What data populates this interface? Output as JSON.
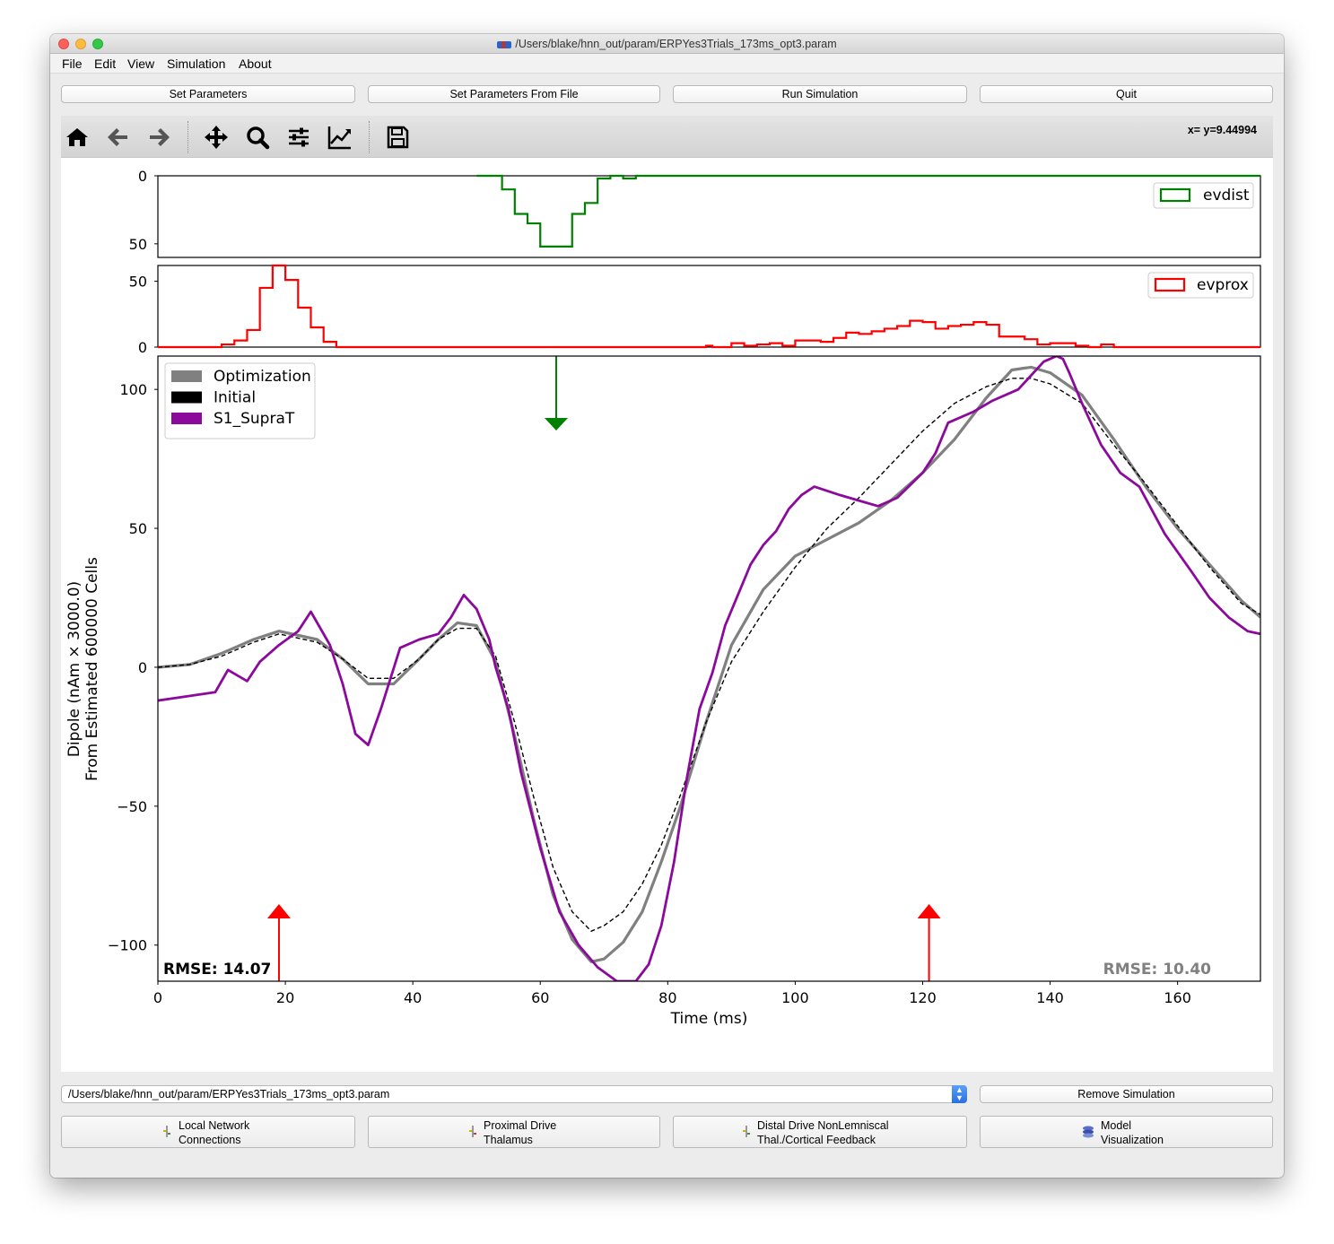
{
  "window": {
    "title": "/Users/blake/hnn_out/param/ERPYes3Trials_173ms_opt3.param"
  },
  "menu": [
    "File",
    "Edit",
    "View",
    "Simulation",
    "About"
  ],
  "top_buttons": {
    "set_parameters": "Set Parameters",
    "set_parameters_from_file": "Set Parameters From File",
    "run_simulation": "Run Simulation",
    "quit": "Quit"
  },
  "toolbar": {
    "icons": [
      "home-icon",
      "back-arrow-icon",
      "forward-arrow-icon",
      "pan-icon",
      "zoom-icon",
      "subplots-config-icon",
      "axes-edit-icon",
      "save-icon"
    ],
    "coordinate_readout": "x= y=9.44994"
  },
  "chart_data": [
    {
      "type": "histogram",
      "panel": "distal-inputs",
      "legend": "evdist",
      "color": "#008000",
      "y_inverted": true,
      "ylim": [
        0,
        60
      ],
      "yticks": [
        "0",
        "50"
      ],
      "x": [
        50,
        54,
        56,
        58,
        60,
        62,
        65,
        67,
        69,
        71,
        73,
        75
      ],
      "values": [
        0,
        10,
        28,
        35,
        52,
        52,
        28,
        20,
        2,
        0,
        2,
        0
      ]
    },
    {
      "type": "histogram",
      "panel": "proximal-inputs",
      "legend": "evprox",
      "color": "#ff0000",
      "ylim": [
        0,
        62
      ],
      "yticks": [
        "50",
        "0"
      ],
      "x": [
        0,
        10,
        12,
        14,
        16,
        18,
        20,
        22,
        24,
        26,
        28,
        86,
        87,
        88,
        90,
        92,
        94,
        96,
        98,
        100,
        102,
        104,
        106,
        108,
        110,
        112,
        114,
        116,
        118,
        120,
        122,
        124,
        126,
        128,
        130,
        132,
        134,
        136,
        138,
        140,
        142,
        144,
        146,
        148,
        150
      ],
      "values": [
        0,
        2,
        5,
        13,
        45,
        62,
        51,
        30,
        15,
        4,
        0,
        1,
        0,
        0,
        3,
        1,
        2,
        3,
        1,
        5,
        5,
        4,
        7,
        11,
        10,
        12,
        14,
        16,
        20,
        19,
        14,
        16,
        17,
        19,
        17,
        8,
        8,
        6,
        2,
        3,
        3,
        1,
        0,
        2,
        0
      ]
    },
    {
      "type": "line",
      "panel": "dipole",
      "xlabel": "Time (ms)",
      "ylabel": "Dipole (nAm × 3000.0)\nFrom Estimated 600000 Cells",
      "xlim": [
        0,
        173
      ],
      "ylim": [
        -113,
        112
      ],
      "xticks": [
        "0",
        "20",
        "40",
        "60",
        "80",
        "100",
        "120",
        "140",
        "160"
      ],
      "yticks": [
        "100",
        "50",
        "0",
        "−50",
        "−100"
      ],
      "legend_location": "upper-left",
      "series": [
        {
          "name": "Optimization",
          "color": "#808080",
          "style": "solid",
          "x": [
            0,
            5,
            10,
            15,
            19,
            25,
            29,
            33,
            37,
            41,
            44,
            47,
            50,
            53,
            56,
            59,
            62,
            65,
            68,
            70,
            73,
            76,
            79,
            82,
            86,
            90,
            95,
            100,
            105,
            110,
            115,
            120,
            125,
            130,
            134,
            137,
            140,
            145,
            150,
            155,
            160,
            165,
            170,
            173
          ],
          "values": [
            0,
            1,
            5,
            10,
            13,
            10,
            3,
            -6,
            -6,
            3,
            10,
            16,
            15,
            2,
            -25,
            -55,
            -82,
            -98,
            -106,
            -105,
            -99,
            -88,
            -70,
            -50,
            -20,
            8,
            28,
            40,
            46,
            52,
            60,
            70,
            82,
            97,
            107,
            108,
            106,
            98,
            82,
            65,
            50,
            37,
            24,
            18
          ]
        },
        {
          "name": "Initial",
          "color": "#000000",
          "style": "dashed",
          "x": [
            0,
            5,
            10,
            15,
            19,
            25,
            29,
            33,
            37,
            41,
            44,
            47,
            50,
            53,
            56,
            59,
            62,
            65,
            68,
            70,
            73,
            76,
            79,
            82,
            86,
            90,
            95,
            100,
            105,
            110,
            115,
            120,
            125,
            130,
            134,
            137,
            140,
            145,
            150,
            155,
            160,
            165,
            170,
            173
          ],
          "values": [
            0,
            1,
            4,
            9,
            12,
            9,
            3,
            -4,
            -4,
            3,
            10,
            14,
            14,
            4,
            -20,
            -47,
            -72,
            -88,
            -95,
            -93,
            -88,
            -78,
            -64,
            -46,
            -20,
            2,
            20,
            36,
            50,
            61,
            73,
            85,
            95,
            101,
            104,
            104,
            102,
            95,
            80,
            66,
            51,
            36,
            23,
            19
          ]
        },
        {
          "name": "S1_SupraT",
          "color": "#8b0a9c",
          "style": "solid",
          "x": [
            0,
            3,
            6,
            9,
            11,
            14,
            16,
            19,
            22,
            24,
            27,
            29,
            31,
            33,
            35,
            38,
            41,
            44,
            46,
            48,
            50,
            52,
            53,
            55,
            57,
            60,
            63,
            66,
            69,
            72,
            75,
            77,
            79,
            81,
            83,
            85,
            87,
            89,
            91,
            93,
            95,
            97,
            99,
            101,
            103,
            107,
            110,
            113,
            116,
            120,
            122,
            124,
            128,
            131,
            135,
            139,
            141,
            142,
            143,
            145,
            148,
            151,
            154,
            158,
            162,
            165,
            168,
            171,
            173
          ],
          "values": [
            -12,
            -11,
            -10,
            -9,
            -1,
            -5,
            2,
            8,
            13,
            20,
            8,
            -6,
            -24,
            -28,
            -15,
            7,
            10,
            12,
            18,
            26,
            21,
            10,
            0,
            -15,
            -38,
            -65,
            -88,
            -100,
            -108,
            -113,
            -113,
            -107,
            -93,
            -70,
            -40,
            -15,
            -2,
            15,
            26,
            37,
            44,
            49,
            57,
            62,
            65,
            62,
            60,
            58,
            61,
            70,
            77,
            88,
            92,
            96,
            100,
            110,
            112,
            111,
            106,
            95,
            80,
            70,
            65,
            48,
            35,
            25,
            18,
            13,
            12
          ]
        }
      ],
      "markers": [
        {
          "type": "proximal-drive-arrow",
          "x": 19,
          "color": "#ff0000"
        },
        {
          "type": "proximal-drive-arrow",
          "x": 121,
          "color": "#ff0000"
        },
        {
          "type": "distal-drive-arrow",
          "x": 62.5,
          "color": "#008000"
        }
      ],
      "annotations": [
        {
          "text": "RMSE: 14.07",
          "color": "#000000"
        },
        {
          "text": "RMSE: 10.40",
          "color": "#808080"
        }
      ]
    }
  ],
  "bottom": {
    "file_select_value": "/Users/blake/hnn_out/param/ERPYes3Trials_173ms_opt3.param",
    "remove_simulation": "Remove Simulation",
    "buttons": [
      {
        "line1": "Local Network",
        "line2": "Connections"
      },
      {
        "line1": "Proximal Drive",
        "line2": "Thalamus"
      },
      {
        "line1": "Distal Drive NonLemniscal",
        "line2": "Thal./Cortical Feedback"
      },
      {
        "line1": "Model",
        "line2": "Visualization"
      }
    ]
  }
}
